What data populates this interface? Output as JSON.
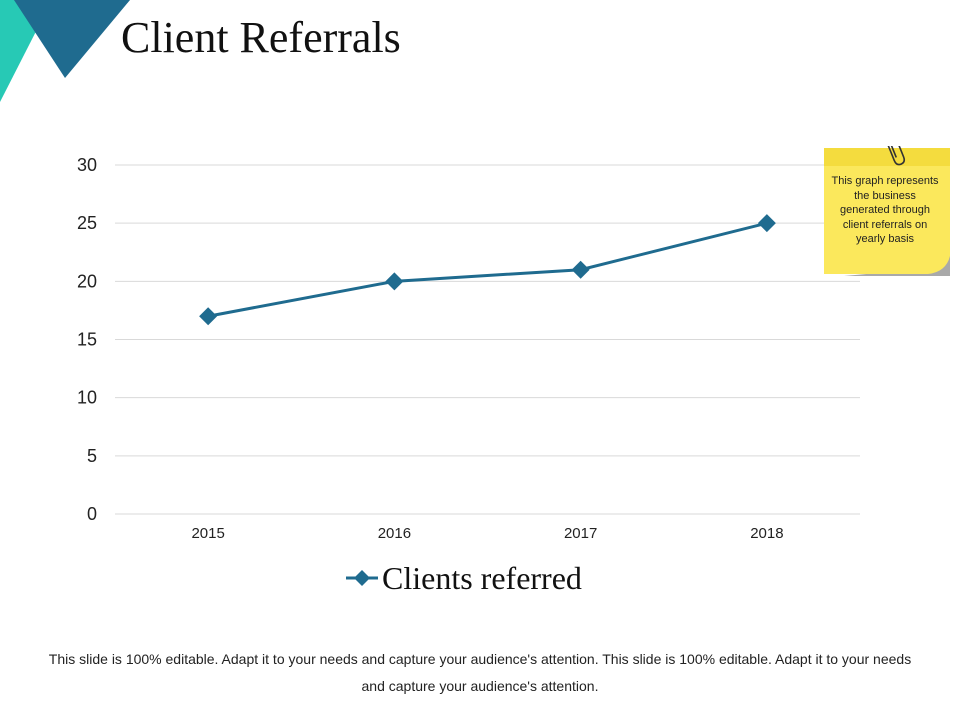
{
  "slide": {
    "title": "Client Referrals",
    "footer": "This slide is 100% editable. Adapt it to your needs and capture your audience's attention. This slide is 100% editable. Adapt it to your needs and capture your audience's attention."
  },
  "sticky_note": {
    "text": "This graph represents the business generated through client referrals on yearly basis",
    "color": "#fbe85c"
  },
  "colors": {
    "accent_dark": "#1f6b8f",
    "accent_teal": "#27c9b5",
    "series": "#1f6b8f",
    "grid": "#d9d9d9"
  },
  "chart_data": {
    "type": "line",
    "categories": [
      "2015",
      "2016",
      "2017",
      "2018"
    ],
    "series": [
      {
        "name": "Clients referred",
        "values": [
          17,
          20,
          21,
          25
        ],
        "marker": "diamond"
      }
    ],
    "ylim": [
      0,
      30
    ],
    "yticks": [
      0,
      5,
      10,
      15,
      20,
      25,
      30
    ],
    "grid": true,
    "legend": "bottom"
  }
}
